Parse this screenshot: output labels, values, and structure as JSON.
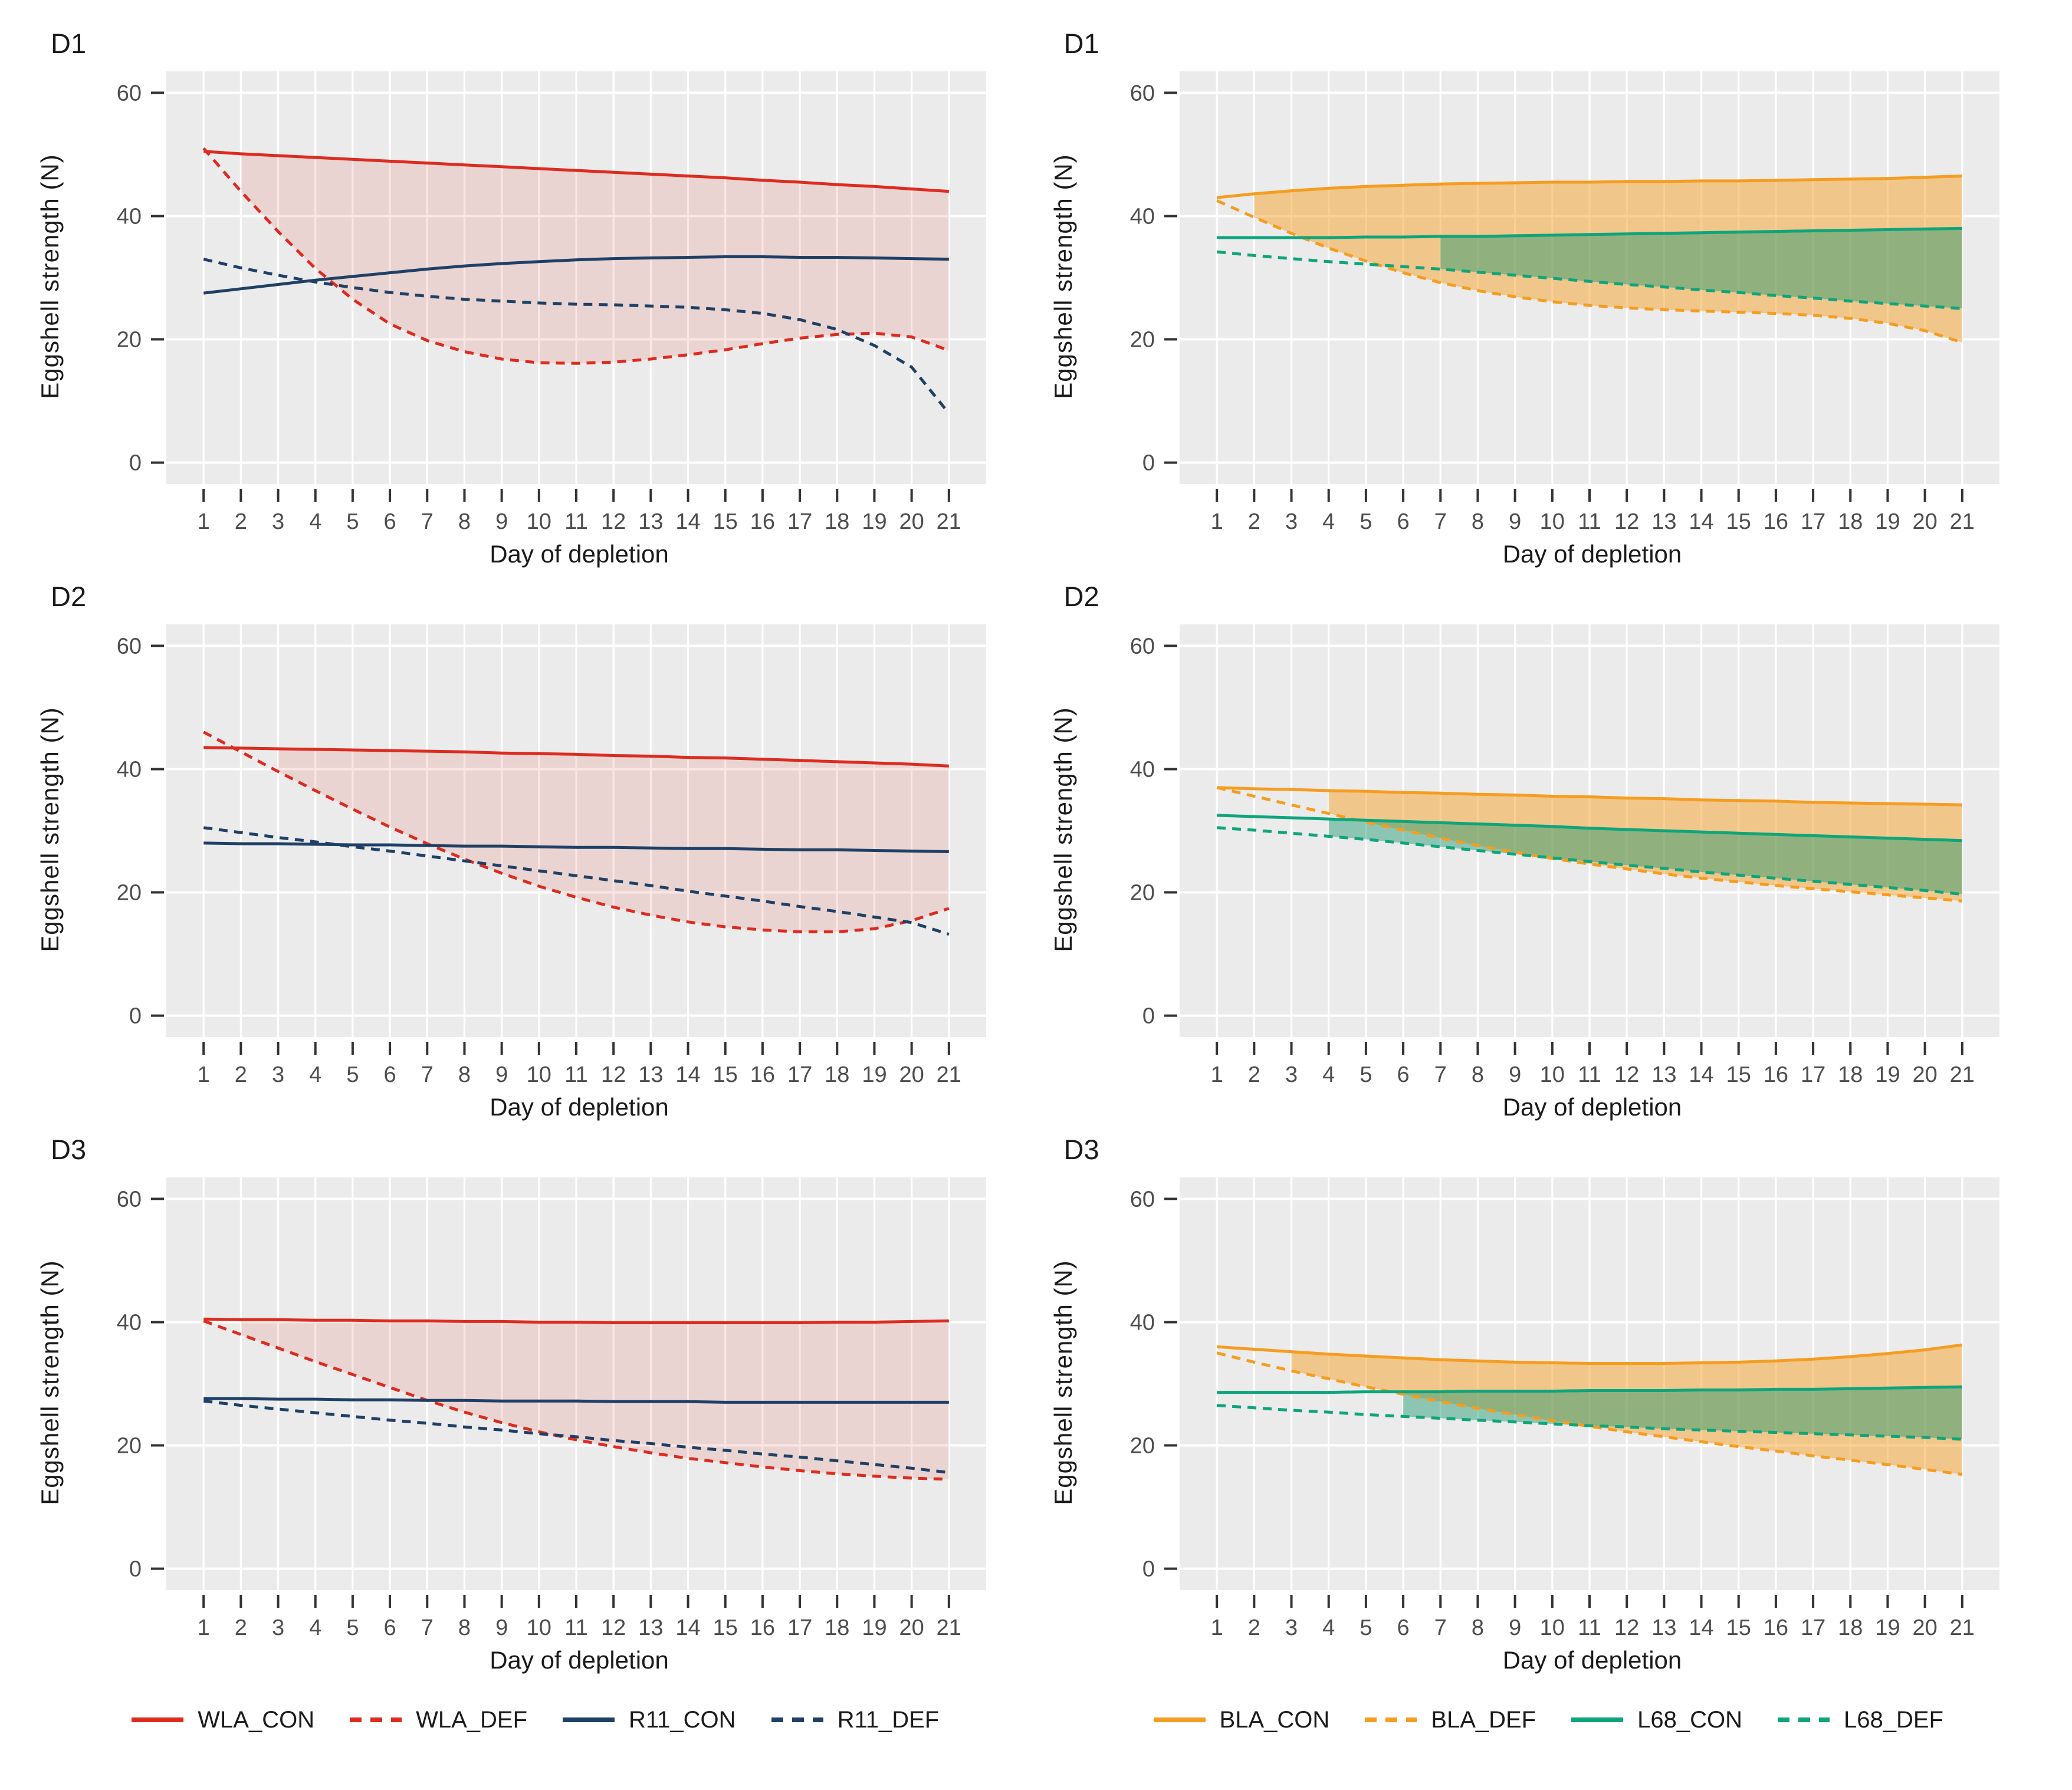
{
  "chart_data": {
    "type": "line",
    "x_label": "Day of depletion",
    "y_label": "Eggshell strength (N)",
    "x_ticks": [
      1,
      2,
      3,
      4,
      5,
      6,
      7,
      8,
      9,
      10,
      11,
      12,
      13,
      14,
      15,
      16,
      17,
      18,
      19,
      20,
      21
    ],
    "y_ticks": [
      0,
      20,
      40,
      60
    ],
    "xlim": [
      0,
      22
    ],
    "ylim": [
      0,
      60
    ],
    "grid": "white-on-gray",
    "legend_position": "bottom",
    "colors": {
      "red": "#DD2B20",
      "navy": "#1F4066",
      "orange": "#F59D20",
      "teal": "#0EA57B",
      "fill_red": "rgba(221,60,48,0.13)",
      "fill_orange": "rgba(245,157,32,0.48)",
      "fill_green": "rgba(26,150,110,0.45)",
      "panel_bg": "#EBEBEB",
      "grid_line": "#FFFFFF",
      "tick_mark": "#333333",
      "tick_label": "#4D4D4D",
      "text": "#1A1A1A"
    },
    "panels": [
      {
        "title": "D1",
        "ribbons": [
          {
            "upper": "WLA_CON",
            "lower": "WLA_DEF",
            "from_day": 2,
            "fill": "fill_red"
          }
        ],
        "series": [
          {
            "name": "WLA_CON",
            "color": "red",
            "dash": false,
            "values": [
              50.5,
              50.1,
              49.8,
              49.5,
              49.2,
              48.9,
              48.6,
              48.3,
              48.0,
              47.7,
              47.4,
              47.1,
              46.8,
              46.5,
              46.2,
              45.8,
              45.5,
              45.1,
              44.8,
              44.4,
              44.0
            ]
          },
          {
            "name": "WLA_DEF",
            "color": "red",
            "dash": true,
            "values": [
              51.0,
              44.0,
              37.5,
              31.5,
              26.5,
              22.5,
              19.8,
              18.0,
              16.8,
              16.2,
              16.1,
              16.3,
              16.8,
              17.5,
              18.3,
              19.3,
              20.2,
              20.8,
              21.0,
              20.4,
              18.2
            ]
          },
          {
            "name": "R11_CON",
            "color": "navy",
            "dash": false,
            "values": [
              27.5,
              28.2,
              28.9,
              29.6,
              30.2,
              30.8,
              31.4,
              31.9,
              32.3,
              32.6,
              32.9,
              33.1,
              33.2,
              33.3,
              33.4,
              33.4,
              33.3,
              33.3,
              33.2,
              33.1,
              33.0
            ]
          },
          {
            "name": "R11_DEF",
            "color": "navy",
            "dash": true,
            "values": [
              33.0,
              31.6,
              30.4,
              29.3,
              28.4,
              27.6,
              27.0,
              26.5,
              26.2,
              25.9,
              25.7,
              25.6,
              25.4,
              25.2,
              24.8,
              24.2,
              23.2,
              21.6,
              19.0,
              15.5,
              8.0
            ]
          }
        ]
      },
      {
        "title": "D1",
        "ribbons": [
          {
            "upper": "BLA_CON",
            "lower": "BLA_DEF",
            "from_day": 2,
            "fill": "fill_orange"
          },
          {
            "upper": "L68_CON",
            "lower": "L68_DEF",
            "from_day": 7,
            "fill": "fill_green"
          }
        ],
        "series": [
          {
            "name": "BLA_CON",
            "color": "orange",
            "dash": false,
            "values": [
              43.0,
              43.6,
              44.1,
              44.5,
              44.8,
              45.0,
              45.2,
              45.3,
              45.4,
              45.5,
              45.5,
              45.6,
              45.6,
              45.7,
              45.7,
              45.8,
              45.9,
              46.0,
              46.1,
              46.3,
              46.5
            ]
          },
          {
            "name": "BLA_DEF",
            "color": "orange",
            "dash": true,
            "values": [
              42.5,
              39.8,
              37.2,
              34.8,
              32.7,
              30.8,
              29.2,
              27.9,
              26.9,
              26.1,
              25.5,
              25.1,
              24.8,
              24.6,
              24.4,
              24.2,
              23.9,
              23.4,
              22.6,
              21.4,
              19.5
            ]
          },
          {
            "name": "L68_CON",
            "color": "teal",
            "dash": false,
            "values": [
              36.5,
              36.5,
              36.5,
              36.5,
              36.6,
              36.6,
              36.7,
              36.7,
              36.8,
              36.9,
              37.0,
              37.1,
              37.2,
              37.3,
              37.4,
              37.5,
              37.6,
              37.7,
              37.8,
              37.9,
              38.0
            ]
          },
          {
            "name": "L68_DEF",
            "color": "teal",
            "dash": true,
            "values": [
              34.2,
              33.6,
              33.1,
              32.6,
              32.2,
              31.8,
              31.4,
              30.9,
              30.4,
              29.9,
              29.4,
              28.9,
              28.5,
              28.0,
              27.6,
              27.1,
              26.7,
              26.2,
              25.8,
              25.4,
              25.0
            ]
          }
        ]
      },
      {
        "title": "D2",
        "ribbons": [
          {
            "upper": "WLA_CON",
            "lower": "WLA_DEF",
            "from_day": 3,
            "fill": "fill_red"
          }
        ],
        "series": [
          {
            "name": "WLA_CON",
            "color": "red",
            "dash": false,
            "values": [
              43.5,
              43.4,
              43.3,
              43.2,
              43.1,
              43.0,
              42.9,
              42.8,
              42.6,
              42.5,
              42.4,
              42.2,
              42.1,
              41.9,
              41.8,
              41.6,
              41.4,
              41.2,
              41.0,
              40.8,
              40.5
            ]
          },
          {
            "name": "WLA_DEF",
            "color": "red",
            "dash": true,
            "values": [
              46.0,
              42.8,
              39.6,
              36.5,
              33.5,
              30.6,
              27.9,
              25.4,
              23.1,
              21.0,
              19.2,
              17.6,
              16.3,
              15.2,
              14.4,
              13.9,
              13.6,
              13.6,
              14.1,
              15.4,
              17.4
            ]
          },
          {
            "name": "R11_CON",
            "color": "navy",
            "dash": false,
            "values": [
              28.0,
              27.9,
              27.9,
              27.8,
              27.7,
              27.7,
              27.6,
              27.5,
              27.5,
              27.4,
              27.3,
              27.3,
              27.2,
              27.1,
              27.1,
              27.0,
              26.9,
              26.9,
              26.8,
              26.7,
              26.6
            ]
          },
          {
            "name": "R11_DEF",
            "color": "navy",
            "dash": true,
            "values": [
              30.5,
              29.7,
              28.9,
              28.2,
              27.4,
              26.7,
              25.9,
              25.1,
              24.3,
              23.5,
              22.7,
              21.9,
              21.1,
              20.2,
              19.4,
              18.6,
              17.7,
              16.9,
              16.0,
              15.1,
              13.2
            ]
          }
        ]
      },
      {
        "title": "D2",
        "ribbons": [
          {
            "upper": "BLA_CON",
            "lower": "BLA_DEF",
            "from_day": 4,
            "fill": "fill_orange"
          },
          {
            "upper": "L68_CON",
            "lower": "L68_DEF",
            "from_day": 4,
            "fill": "fill_green"
          }
        ],
        "series": [
          {
            "name": "BLA_CON",
            "color": "orange",
            "dash": false,
            "values": [
              37.0,
              36.8,
              36.7,
              36.5,
              36.4,
              36.2,
              36.1,
              35.9,
              35.8,
              35.6,
              35.5,
              35.3,
              35.2,
              35.0,
              34.9,
              34.8,
              34.6,
              34.5,
              34.4,
              34.3,
              34.2
            ]
          },
          {
            "name": "BLA_DEF",
            "color": "orange",
            "dash": true,
            "values": [
              37.0,
              35.6,
              34.2,
              32.8,
              31.4,
              30.1,
              28.8,
              27.6,
              26.5,
              25.5,
              24.6,
              23.8,
              23.0,
              22.3,
              21.7,
              21.1,
              20.6,
              20.1,
              19.6,
              19.1,
              18.6
            ]
          },
          {
            "name": "L68_CON",
            "color": "teal",
            "dash": false,
            "values": [
              32.5,
              32.3,
              32.1,
              31.9,
              31.7,
              31.5,
              31.3,
              31.1,
              30.9,
              30.7,
              30.4,
              30.2,
              30.0,
              29.8,
              29.6,
              29.4,
              29.2,
              29.0,
              28.8,
              28.6,
              28.4
            ]
          },
          {
            "name": "L68_DEF",
            "color": "teal",
            "dash": true,
            "values": [
              30.5,
              30.1,
              29.6,
              29.1,
              28.6,
              28.0,
              27.4,
              26.8,
              26.2,
              25.6,
              25.0,
              24.4,
              23.9,
              23.3,
              22.8,
              22.3,
              21.8,
              21.3,
              20.8,
              20.3,
              19.7
            ]
          }
        ]
      },
      {
        "title": "D3",
        "ribbons": [
          {
            "upper": "WLA_CON",
            "lower": "WLA_DEF",
            "from_day": 2,
            "fill": "fill_red"
          }
        ],
        "series": [
          {
            "name": "WLA_CON",
            "color": "red",
            "dash": false,
            "values": [
              40.5,
              40.4,
              40.4,
              40.3,
              40.3,
              40.2,
              40.2,
              40.1,
              40.1,
              40.0,
              40.0,
              39.9,
              39.9,
              39.9,
              39.9,
              39.9,
              39.9,
              40.0,
              40.0,
              40.1,
              40.2
            ]
          },
          {
            "name": "WLA_DEF",
            "color": "red",
            "dash": true,
            "values": [
              40.2,
              38.0,
              35.8,
              33.6,
              31.5,
              29.4,
              27.3,
              25.4,
              23.7,
              22.2,
              20.9,
              19.8,
              18.8,
              17.9,
              17.2,
              16.5,
              15.9,
              15.4,
              15.0,
              14.7,
              14.5
            ]
          },
          {
            "name": "R11_CON",
            "color": "navy",
            "dash": false,
            "values": [
              27.6,
              27.6,
              27.5,
              27.5,
              27.4,
              27.4,
              27.3,
              27.3,
              27.2,
              27.2,
              27.2,
              27.1,
              27.1,
              27.1,
              27.0,
              27.0,
              27.0,
              27.0,
              27.0,
              27.0,
              27.0
            ]
          },
          {
            "name": "R11_DEF",
            "color": "navy",
            "dash": true,
            "values": [
              27.2,
              26.5,
              25.9,
              25.3,
              24.7,
              24.1,
              23.6,
              23.0,
              22.5,
              21.9,
              21.4,
              20.8,
              20.3,
              19.7,
              19.2,
              18.6,
              18.1,
              17.5,
              16.9,
              16.3,
              15.6
            ]
          }
        ]
      },
      {
        "title": "D3",
        "ribbons": [
          {
            "upper": "BLA_CON",
            "lower": "BLA_DEF",
            "from_day": 3,
            "fill": "fill_orange"
          },
          {
            "upper": "L68_CON",
            "lower": "L68_DEF",
            "from_day": 6,
            "fill": "fill_green"
          }
        ],
        "series": [
          {
            "name": "BLA_CON",
            "color": "orange",
            "dash": false,
            "values": [
              36.0,
              35.6,
              35.2,
              34.8,
              34.5,
              34.2,
              33.9,
              33.7,
              33.5,
              33.4,
              33.3,
              33.3,
              33.3,
              33.4,
              33.5,
              33.7,
              34.0,
              34.4,
              34.9,
              35.5,
              36.3
            ]
          },
          {
            "name": "BLA_DEF",
            "color": "orange",
            "dash": true,
            "values": [
              35.0,
              33.5,
              32.1,
              30.8,
              29.5,
              28.3,
              27.1,
              26.0,
              25.0,
              24.0,
              23.1,
              22.2,
              21.4,
              20.6,
              19.8,
              19.1,
              18.3,
              17.6,
              16.9,
              16.1,
              15.3
            ]
          },
          {
            "name": "L68_CON",
            "color": "teal",
            "dash": false,
            "values": [
              28.6,
              28.6,
              28.6,
              28.6,
              28.7,
              28.7,
              28.7,
              28.8,
              28.8,
              28.8,
              28.9,
              28.9,
              28.9,
              29.0,
              29.0,
              29.1,
              29.1,
              29.2,
              29.3,
              29.4,
              29.5
            ]
          },
          {
            "name": "L68_DEF",
            "color": "teal",
            "dash": true,
            "values": [
              26.5,
              26.1,
              25.7,
              25.4,
              25.0,
              24.7,
              24.4,
              24.1,
              23.8,
              23.5,
              23.2,
              23.0,
              22.7,
              22.5,
              22.3,
              22.1,
              21.9,
              21.7,
              21.5,
              21.3,
              21.0
            ]
          }
        ]
      }
    ],
    "legends": {
      "left": [
        {
          "label": "WLA_CON",
          "color": "red",
          "dash": false
        },
        {
          "label": "WLA_DEF",
          "color": "red",
          "dash": true
        },
        {
          "label": "R11_CON",
          "color": "navy",
          "dash": false
        },
        {
          "label": "R11_DEF",
          "color": "navy",
          "dash": true
        }
      ],
      "right": [
        {
          "label": "BLA_CON",
          "color": "orange",
          "dash": false
        },
        {
          "label": "BLA_DEF",
          "color": "orange",
          "dash": true
        },
        {
          "label": "L68_CON",
          "color": "teal",
          "dash": false
        },
        {
          "label": "L68_DEF",
          "color": "teal",
          "dash": true
        }
      ]
    }
  }
}
